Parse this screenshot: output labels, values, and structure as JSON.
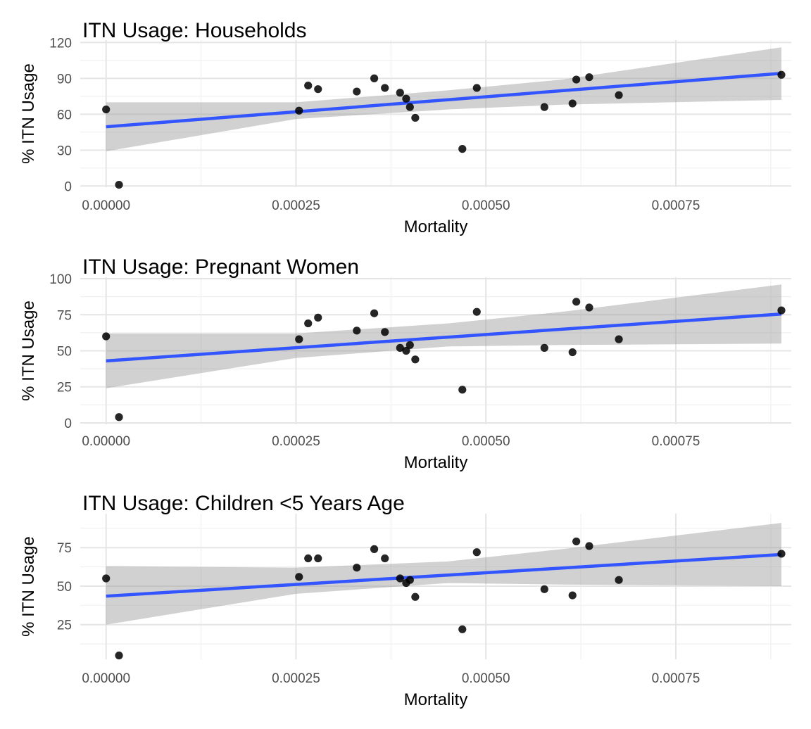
{
  "colors": {
    "fit_line": "#3355ff",
    "ribbon": "#999999",
    "points": "#000000",
    "grid_major": "#e5e5e5",
    "grid_minor": "#f0f0f0"
  },
  "chart_data": [
    {
      "type": "scatter",
      "title": "ITN Usage: Households",
      "xlabel": "Mortality",
      "ylabel": "% ITN Usage",
      "xlim": [
        -3.4e-05,
        0.000902
      ],
      "ylim": [
        -1,
        122
      ],
      "x_ticks": [
        0,
        0.00025,
        0.0005,
        0.00075
      ],
      "x_tick_labels": [
        "0.00000",
        "0.00025",
        "0.00050",
        "0.00075"
      ],
      "y_ticks": [
        0,
        30,
        60,
        90,
        120
      ],
      "y_tick_labels": [
        "0",
        "30",
        "60",
        "90",
        "120"
      ],
      "grid": true,
      "points": {
        "x": [
          0.0,
          1.7e-05,
          0.000254,
          0.000266,
          0.000279,
          0.00033,
          0.000353,
          0.000367,
          0.000387,
          0.000395,
          0.0004,
          0.000407,
          0.000469,
          0.000488,
          0.000577,
          0.000614,
          0.000619,
          0.000636,
          0.000675,
          0.000889
        ],
        "y": [
          64,
          1,
          63,
          84,
          81,
          79,
          90,
          82,
          78,
          73,
          66,
          57,
          31,
          82,
          66,
          69,
          89,
          91,
          76,
          93
        ]
      },
      "fit": {
        "x": [
          0.0,
          0.000889
        ],
        "y": [
          49.5,
          94.2
        ]
      },
      "ribbon": {
        "x": [
          0.0,
          0.00025,
          0.00045,
          0.0006,
          0.000889
        ],
        "lower": [
          29,
          56,
          64,
          68,
          72
        ],
        "upper": [
          70,
          70,
          80,
          89,
          116
        ]
      }
    },
    {
      "type": "scatter",
      "title": "ITN Usage: Pregnant Women",
      "xlabel": "Mortality",
      "ylabel": "% ITN Usage",
      "xlim": [
        -3.4e-05,
        0.000902
      ],
      "ylim": [
        -1,
        101
      ],
      "x_ticks": [
        0,
        0.00025,
        0.0005,
        0.00075
      ],
      "x_tick_labels": [
        "0.00000",
        "0.00025",
        "0.00050",
        "0.00075"
      ],
      "y_ticks": [
        0,
        25,
        50,
        75,
        100
      ],
      "y_tick_labels": [
        "0",
        "25",
        "50",
        "75",
        "100"
      ],
      "grid": true,
      "points": {
        "x": [
          0.0,
          1.7e-05,
          0.000254,
          0.000266,
          0.000279,
          0.00033,
          0.000353,
          0.000367,
          0.000387,
          0.000395,
          0.0004,
          0.000407,
          0.000469,
          0.000488,
          0.000577,
          0.000614,
          0.000619,
          0.000636,
          0.000675,
          0.000889
        ],
        "y": [
          60,
          4,
          58,
          69,
          73,
          64,
          76,
          63,
          52,
          50,
          54,
          44,
          23,
          77,
          52,
          49,
          84,
          80,
          58,
          78
        ]
      },
      "fit": {
        "x": [
          0.0,
          0.000889
        ],
        "y": [
          43,
          75.5
        ]
      },
      "ribbon": {
        "x": [
          0.0,
          0.00025,
          0.00045,
          0.0006,
          0.000889
        ],
        "lower": [
          24,
          45,
          53,
          54,
          55
        ],
        "upper": [
          62,
          62,
          69,
          77,
          96
        ]
      }
    },
    {
      "type": "scatter",
      "title": "ITN Usage: Children <5 Years Age",
      "xlabel": "Mortality",
      "ylabel": "% ITN Usage",
      "xlim": [
        -3.4e-05,
        0.000902
      ],
      "ylim": [
        2.5,
        97
      ],
      "x_ticks": [
        0,
        0.00025,
        0.0005,
        0.00075
      ],
      "x_tick_labels": [
        "0.00000",
        "0.00025",
        "0.00050",
        "0.00075"
      ],
      "y_ticks": [
        25,
        50,
        75
      ],
      "y_tick_labels": [
        "25",
        "50",
        "75"
      ],
      "grid": true,
      "points": {
        "x": [
          0.0,
          1.7e-05,
          0.000254,
          0.000266,
          0.000279,
          0.00033,
          0.000353,
          0.000367,
          0.000387,
          0.000395,
          0.0004,
          0.000407,
          0.000469,
          0.000488,
          0.000577,
          0.000614,
          0.000619,
          0.000636,
          0.000675,
          0.000889
        ],
        "y": [
          55,
          5,
          56,
          68,
          68,
          62,
          74,
          68,
          55,
          52,
          54,
          43,
          22,
          72,
          48,
          44,
          79,
          76,
          54,
          71
        ]
      },
      "fit": {
        "x": [
          0.0,
          0.000889
        ],
        "y": [
          43.5,
          70.5
        ]
      },
      "ribbon": {
        "x": [
          0.0,
          0.00025,
          0.00045,
          0.0006,
          0.000889
        ],
        "lower": [
          25,
          45,
          52,
          51,
          50
        ],
        "upper": [
          63,
          62,
          66,
          74,
          91
        ]
      }
    }
  ]
}
